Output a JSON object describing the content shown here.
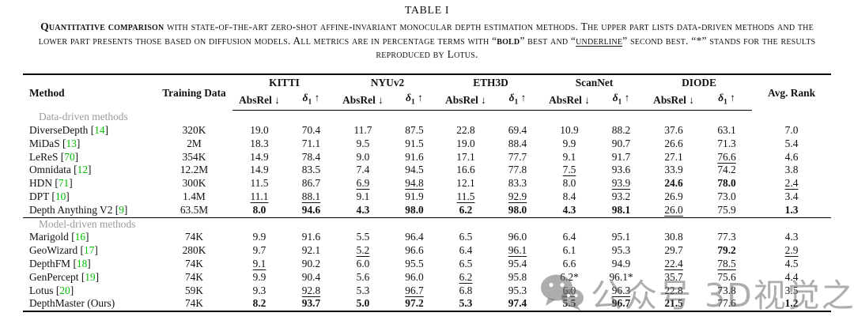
{
  "caption": {
    "table_label": "TABLE I",
    "lead": "Quantitative comparison",
    "body1": " with state-of-the-art zero-shot affine-invariant monocular depth estimation methods. The upper part lists data-driven methods and the lower part presents those based on diffusion models. All metrics are in percentage terms with “",
    "bold_word": "bold",
    "body2": "” best and “",
    "underline_word": "underline",
    "body3": "” second best. “*” stands for the results reproduced by Lotus."
  },
  "table": {
    "method_label": "Method",
    "training_label": "Training Data",
    "avg_rank_label": "Avg. Rank",
    "groups": [
      "KITTI",
      "NYUv2",
      "ETH3D",
      "ScanNet",
      "DIODE"
    ],
    "metrics": {
      "absrel": "AbsRel",
      "down": "↓",
      "delta": "δ",
      "delta_sub": "1",
      "up": "↑"
    },
    "cite_brackets": [
      "[",
      "]"
    ],
    "colors": {
      "citation_green": "#00bf00",
      "section_gray": "#9b9b9b"
    },
    "value_styles_legend": {
      "n": "normal",
      "b": "bold-best",
      "u": "underline-second-best"
    },
    "sections": [
      {
        "label": "Data-driven methods",
        "rows": [
          {
            "name": "DiverseDepth",
            "cite": "14",
            "training": "320K",
            "values": [
              [
                "19.0",
                "n"
              ],
              [
                "70.4",
                "n"
              ],
              [
                "11.7",
                "n"
              ],
              [
                "87.5",
                "n"
              ],
              [
                "22.8",
                "n"
              ],
              [
                "69.4",
                "n"
              ],
              [
                "10.9",
                "n"
              ],
              [
                "88.2",
                "n"
              ],
              [
                "37.6",
                "n"
              ],
              [
                "63.1",
                "n"
              ],
              [
                "7.0",
                "n"
              ]
            ]
          },
          {
            "name": "MiDaS",
            "cite": "13",
            "training": "2M",
            "values": [
              [
                "18.3",
                "n"
              ],
              [
                "71.1",
                "n"
              ],
              [
                "9.5",
                "n"
              ],
              [
                "91.5",
                "n"
              ],
              [
                "19.0",
                "n"
              ],
              [
                "88.4",
                "n"
              ],
              [
                "9.9",
                "n"
              ],
              [
                "90.7",
                "n"
              ],
              [
                "26.6",
                "n"
              ],
              [
                "71.3",
                "n"
              ],
              [
                "5.4",
                "n"
              ]
            ]
          },
          {
            "name": "LeReS",
            "cite": "70",
            "training": "354K",
            "values": [
              [
                "14.9",
                "n"
              ],
              [
                "78.4",
                "n"
              ],
              [
                "9.0",
                "n"
              ],
              [
                "91.6",
                "n"
              ],
              [
                "17.1",
                "n"
              ],
              [
                "77.7",
                "n"
              ],
              [
                "9.1",
                "n"
              ],
              [
                "91.7",
                "n"
              ],
              [
                "27.1",
                "n"
              ],
              [
                "76.6",
                "u"
              ],
              [
                "4.6",
                "n"
              ]
            ]
          },
          {
            "name": "Omnidata",
            "cite": "12",
            "training": "12.2M",
            "values": [
              [
                "14.9",
                "n"
              ],
              [
                "83.5",
                "n"
              ],
              [
                "7.4",
                "n"
              ],
              [
                "94.5",
                "n"
              ],
              [
                "16.6",
                "n"
              ],
              [
                "77.8",
                "n"
              ],
              [
                "7.5",
                "u"
              ],
              [
                "93.6",
                "n"
              ],
              [
                "33.9",
                "n"
              ],
              [
                "74.2",
                "n"
              ],
              [
                "3.8",
                "n"
              ]
            ]
          },
          {
            "name": "HDN",
            "cite": "71",
            "training": "300K",
            "values": [
              [
                "11.5",
                "n"
              ],
              [
                "86.7",
                "n"
              ],
              [
                "6.9",
                "u"
              ],
              [
                "94.8",
                "u"
              ],
              [
                "12.1",
                "n"
              ],
              [
                "83.3",
                "n"
              ],
              [
                "8.0",
                "n"
              ],
              [
                "93.9",
                "u"
              ],
              [
                "24.6",
                "b"
              ],
              [
                "78.0",
                "b"
              ],
              [
                "2.4",
                "u"
              ]
            ]
          },
          {
            "name": "DPT",
            "cite": "10",
            "training": "1.4M",
            "values": [
              [
                "11.1",
                "u"
              ],
              [
                "88.1",
                "u"
              ],
              [
                "9.1",
                "n"
              ],
              [
                "91.9",
                "n"
              ],
              [
                "11.5",
                "u"
              ],
              [
                "92.9",
                "u"
              ],
              [
                "8.4",
                "n"
              ],
              [
                "93.2",
                "n"
              ],
              [
                "26.9",
                "n"
              ],
              [
                "73.0",
                "n"
              ],
              [
                "3.4",
                "n"
              ]
            ]
          },
          {
            "name": "Depth Anything V2",
            "cite": "9",
            "training": "63.5M",
            "values": [
              [
                "8.0",
                "b"
              ],
              [
                "94.6",
                "b"
              ],
              [
                "4.3",
                "b"
              ],
              [
                "98.0",
                "b"
              ],
              [
                "6.2",
                "b"
              ],
              [
                "98.0",
                "b"
              ],
              [
                "4.3",
                "b"
              ],
              [
                "98.1",
                "b"
              ],
              [
                "26.0",
                "u"
              ],
              [
                "75.9",
                "n"
              ],
              [
                "1.3",
                "b"
              ]
            ]
          }
        ]
      },
      {
        "label": "Model-driven methods",
        "rows": [
          {
            "name": "Marigold",
            "cite": "16",
            "training": "74K",
            "values": [
              [
                "9.9",
                "n"
              ],
              [
                "91.6",
                "n"
              ],
              [
                "5.5",
                "n"
              ],
              [
                "96.4",
                "n"
              ],
              [
                "6.5",
                "n"
              ],
              [
                "96.0",
                "n"
              ],
              [
                "6.4",
                "n"
              ],
              [
                "95.1",
                "n"
              ],
              [
                "30.8",
                "n"
              ],
              [
                "77.3",
                "n"
              ],
              [
                "4.3",
                "n"
              ]
            ]
          },
          {
            "name": "GeoWizard",
            "cite": "17",
            "training": "280K",
            "values": [
              [
                "9.7",
                "n"
              ],
              [
                "92.1",
                "n"
              ],
              [
                "5.2",
                "u"
              ],
              [
                "96.6",
                "n"
              ],
              [
                "6.4",
                "n"
              ],
              [
                "96.1",
                "u"
              ],
              [
                "6.1",
                "n"
              ],
              [
                "95.3",
                "n"
              ],
              [
                "29.7",
                "n"
              ],
              [
                "79.2",
                "b"
              ],
              [
                "2.9",
                "u"
              ]
            ]
          },
          {
            "name": "DepthFM",
            "cite": "18",
            "training": "74K",
            "values": [
              [
                "9.1",
                "u"
              ],
              [
                "90.2",
                "n"
              ],
              [
                "6.0",
                "n"
              ],
              [
                "95.5",
                "n"
              ],
              [
                "6.5",
                "n"
              ],
              [
                "95.4",
                "n"
              ],
              [
                "6.6",
                "n"
              ],
              [
                "94.9",
                "n"
              ],
              [
                "22.4",
                "u"
              ],
              [
                "78.5",
                "u"
              ],
              [
                "4.5",
                "n"
              ]
            ]
          },
          {
            "name": "GenPercept",
            "cite": "19",
            "training": "74K",
            "values": [
              [
                "9.9",
                "n"
              ],
              [
                "90.4",
                "n"
              ],
              [
                "5.6",
                "n"
              ],
              [
                "96.0",
                "n"
              ],
              [
                "6.2",
                "u"
              ],
              [
                "95.8",
                "n"
              ],
              [
                "6.2*",
                "n"
              ],
              [
                "96.1*",
                "n"
              ],
              [
                "35.7",
                "n"
              ],
              [
                "75.6",
                "n"
              ],
              [
                "4.4",
                "n"
              ]
            ]
          },
          {
            "name": "Lotus",
            "cite": "20",
            "training": "59K",
            "values": [
              [
                "9.3",
                "n"
              ],
              [
                "92.8",
                "u"
              ],
              [
                "5.3",
                "n"
              ],
              [
                "96.7",
                "u"
              ],
              [
                "6.8",
                "n"
              ],
              [
                "95.3",
                "n"
              ],
              [
                "6.0",
                "u"
              ],
              [
                "96.3",
                "u"
              ],
              [
                "22.8",
                "n"
              ],
              [
                "73.8",
                "n"
              ],
              [
                "3.5",
                "n"
              ]
            ]
          },
          {
            "name": "DepthMaster (Ours)",
            "cite": null,
            "training": "74K",
            "values": [
              [
                "8.2",
                "b"
              ],
              [
                "93.7",
                "b"
              ],
              [
                "5.0",
                "b"
              ],
              [
                "97.2",
                "b"
              ],
              [
                "5.3",
                "b"
              ],
              [
                "97.4",
                "b"
              ],
              [
                "5.5",
                "b"
              ],
              [
                "96.7",
                "b"
              ],
              [
                "21.5",
                "b"
              ],
              [
                "77.6",
                "n"
              ],
              [
                "1.2",
                "b"
              ]
            ]
          }
        ]
      }
    ]
  },
  "watermark": {
    "text": "公众号 3D视觉之心"
  }
}
